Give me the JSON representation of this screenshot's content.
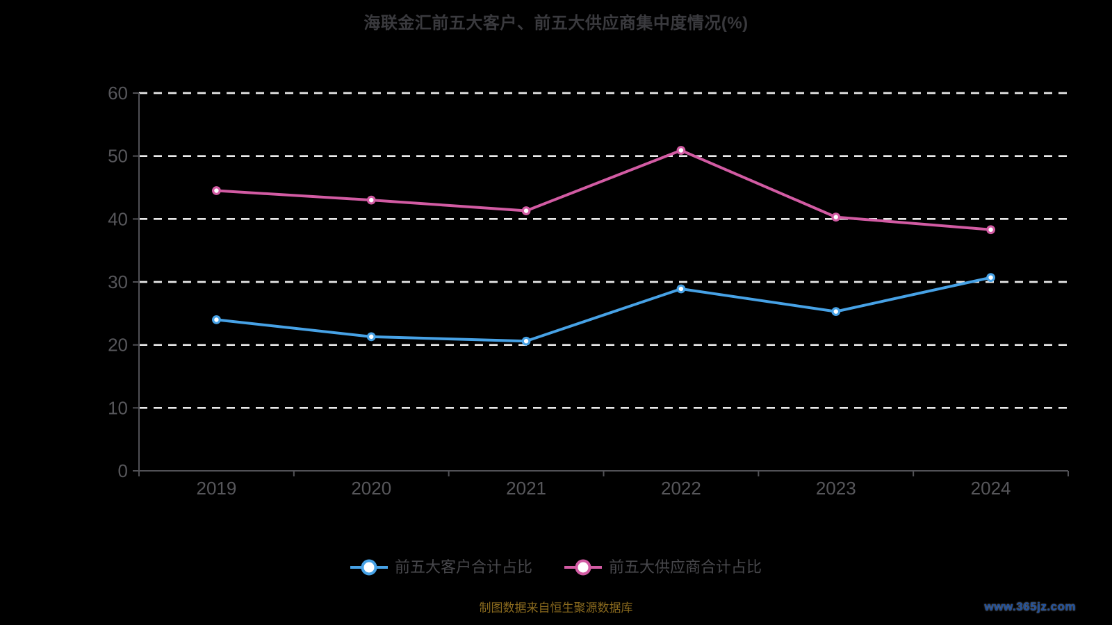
{
  "title": "海联金汇前五大客户、前五大供应商集中度情况(%)",
  "legend": [
    {
      "label": "前五大客户合计占比",
      "color": "#47a2e6"
    },
    {
      "label": "前五大供应商合计占比",
      "color": "#d25ba3"
    }
  ],
  "footer": {
    "source_note": "制图数据来自恒生聚源数据库",
    "watermark": "www.365jz.com"
  },
  "colors": {
    "background": "#000000",
    "title_text": "#3a3a3e",
    "axis_line": "#515156",
    "axis_label": "#57575b",
    "gridline": "#e9e9e9",
    "legend_text": "#48484c",
    "customers_line": "#47a2e6",
    "suppliers_line": "#d25ba3",
    "marker_fill": "#ffffff",
    "source_text": "#8a6a1e",
    "watermark_text": "#1c4f9e"
  },
  "chart_data": {
    "type": "line",
    "title": "海联金汇前五大客户、前五大供应商集中度情况(%)",
    "categories": [
      "2019",
      "2020",
      "2021",
      "2022",
      "2023",
      "2024"
    ],
    "series": [
      {
        "name": "前五大客户合计占比",
        "color": "#47a2e6",
        "values": [
          24.0,
          21.3,
          20.6,
          28.9,
          25.3,
          30.7
        ]
      },
      {
        "name": "前五大供应商合计占比",
        "color": "#d25ba3",
        "values": [
          44.5,
          43.0,
          41.3,
          50.9,
          40.3,
          38.3
        ]
      }
    ],
    "xlabel": "",
    "ylabel": "",
    "ylim": [
      0,
      60
    ],
    "yticks": [
      0,
      10,
      20,
      30,
      40,
      50,
      60
    ],
    "grid": "horizontal-dashed",
    "legend_position": "bottom"
  }
}
